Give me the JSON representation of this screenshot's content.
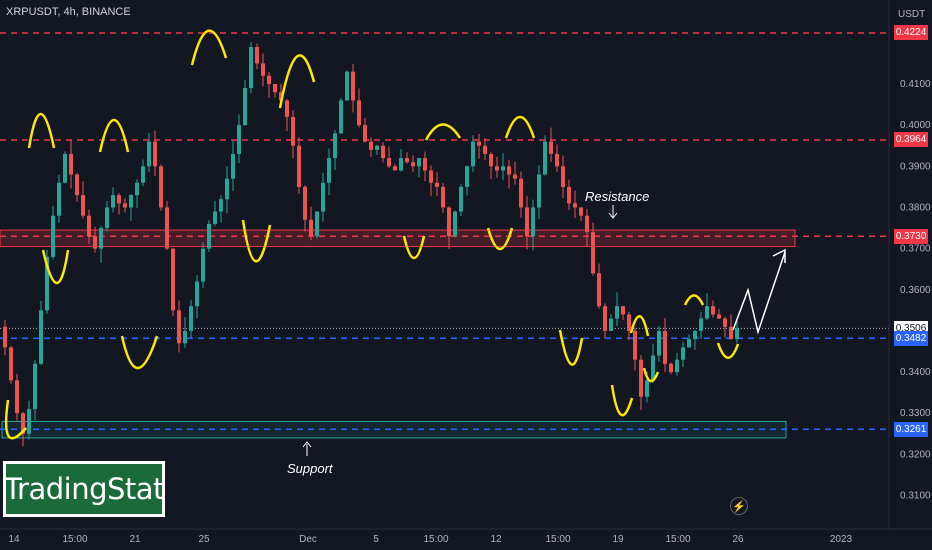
{
  "symbol_label": "XRPUSDT, 4h, BINANCE",
  "currency_label": "USDT",
  "watermark": "TradingStat",
  "annotations": {
    "resistance": "Resistance",
    "support": "Support"
  },
  "colors": {
    "background": "#131722",
    "up": "#26a69a",
    "down": "#ef5350",
    "resistance_line": "#f23645",
    "support_line": "#2962ff",
    "wave": "#ffe800",
    "projection": "#ffffff"
  },
  "chart_data": {
    "type": "candlestick",
    "title": "XRPUSDT, 4h, BINANCE",
    "y_axis": {
      "unit": "USDT",
      "ticks": [
        "0.4100",
        "0.4000",
        "0.3900",
        "0.3800",
        "0.3700",
        "0.3600",
        "0.3400",
        "0.3300",
        "0.3200",
        "0.3100"
      ],
      "range": [
        0.306,
        0.425
      ]
    },
    "x_axis": {
      "ticks": [
        "14",
        "15:00",
        "21",
        "25",
        "Dec",
        "5",
        "15:00",
        "12",
        "15:00",
        "19",
        "15:00",
        "26",
        "2023"
      ]
    },
    "price_levels": [
      {
        "value": 0.4224,
        "label": "0.4224",
        "style": "dashed",
        "color": "#f23645"
      },
      {
        "value": 0.3964,
        "label": "0.3964",
        "style": "dashed",
        "color": "#f23645"
      },
      {
        "value": 0.373,
        "label": "0.3730",
        "style": "dashed",
        "color": "#f23645"
      },
      {
        "value": 0.3506,
        "label": "0.3506",
        "style": "dotted",
        "color": "#b2b5be"
      },
      {
        "value": 0.3482,
        "label": "0.3482",
        "style": "dashed",
        "color": "#2962ff"
      },
      {
        "value": 0.3261,
        "label": "0.3261",
        "style": "dashed",
        "color": "#2962ff"
      }
    ],
    "zones": [
      {
        "name": "Resistance",
        "top": 0.3745,
        "bottom": 0.3705,
        "color": "#f23645"
      },
      {
        "name": "Support",
        "top": 0.328,
        "bottom": 0.324,
        "color": "#26a69a"
      }
    ],
    "price_path": [
      [
        0,
        0.351
      ],
      [
        1,
        0.346
      ],
      [
        2,
        0.338
      ],
      [
        3,
        0.33
      ],
      [
        4,
        0.325
      ],
      [
        5,
        0.331
      ],
      [
        6,
        0.342
      ],
      [
        7,
        0.355
      ],
      [
        8,
        0.368
      ],
      [
        9,
        0.378
      ],
      [
        10,
        0.386
      ],
      [
        11,
        0.393
      ],
      [
        12,
        0.388
      ],
      [
        13,
        0.383
      ],
      [
        14,
        0.378
      ],
      [
        15,
        0.373
      ],
      [
        16,
        0.37
      ],
      [
        17,
        0.375
      ],
      [
        18,
        0.38
      ],
      [
        19,
        0.383
      ],
      [
        20,
        0.381
      ],
      [
        21,
        0.38
      ],
      [
        22,
        0.383
      ],
      [
        23,
        0.386
      ],
      [
        24,
        0.39
      ],
      [
        25,
        0.396
      ],
      [
        26,
        0.39
      ],
      [
        27,
        0.38
      ],
      [
        28,
        0.37
      ],
      [
        29,
        0.355
      ],
      [
        30,
        0.347
      ],
      [
        31,
        0.35
      ],
      [
        32,
        0.356
      ],
      [
        33,
        0.362
      ],
      [
        34,
        0.37
      ],
      [
        35,
        0.376
      ],
      [
        36,
        0.379
      ],
      [
        37,
        0.382
      ],
      [
        38,
        0.387
      ],
      [
        39,
        0.393
      ],
      [
        40,
        0.4
      ],
      [
        41,
        0.409
      ],
      [
        42,
        0.419
      ],
      [
        43,
        0.415
      ],
      [
        44,
        0.412
      ],
      [
        45,
        0.41
      ],
      [
        46,
        0.408
      ],
      [
        47,
        0.406
      ],
      [
        48,
        0.402
      ],
      [
        49,
        0.395
      ],
      [
        50,
        0.385
      ],
      [
        51,
        0.377
      ],
      [
        52,
        0.373
      ],
      [
        53,
        0.379
      ],
      [
        54,
        0.386
      ],
      [
        55,
        0.392
      ],
      [
        56,
        0.398
      ],
      [
        57,
        0.406
      ],
      [
        58,
        0.413
      ],
      [
        59,
        0.406
      ],
      [
        60,
        0.4
      ],
      [
        61,
        0.396
      ],
      [
        62,
        0.394
      ],
      [
        63,
        0.395
      ],
      [
        64,
        0.392
      ],
      [
        65,
        0.39
      ],
      [
        66,
        0.389
      ],
      [
        67,
        0.392
      ],
      [
        68,
        0.391
      ],
      [
        69,
        0.39
      ],
      [
        70,
        0.392
      ],
      [
        71,
        0.389
      ],
      [
        72,
        0.386
      ],
      [
        73,
        0.385
      ],
      [
        74,
        0.38
      ],
      [
        75,
        0.373
      ],
      [
        76,
        0.379
      ],
      [
        77,
        0.385
      ],
      [
        78,
        0.39
      ],
      [
        79,
        0.396
      ],
      [
        80,
        0.395
      ],
      [
        81,
        0.393
      ],
      [
        82,
        0.39
      ],
      [
        83,
        0.389
      ],
      [
        84,
        0.39
      ],
      [
        85,
        0.388
      ],
      [
        86,
        0.387
      ],
      [
        87,
        0.38
      ],
      [
        88,
        0.373
      ],
      [
        89,
        0.38
      ],
      [
        90,
        0.388
      ],
      [
        91,
        0.396
      ],
      [
        92,
        0.393
      ],
      [
        93,
        0.39
      ],
      [
        94,
        0.385
      ],
      [
        95,
        0.381
      ],
      [
        96,
        0.38
      ],
      [
        97,
        0.378
      ],
      [
        98,
        0.374
      ],
      [
        99,
        0.364
      ],
      [
        100,
        0.356
      ],
      [
        101,
        0.35
      ],
      [
        102,
        0.353
      ],
      [
        103,
        0.356
      ],
      [
        104,
        0.354
      ],
      [
        105,
        0.35
      ],
      [
        106,
        0.343
      ],
      [
        107,
        0.334
      ],
      [
        108,
        0.338
      ],
      [
        109,
        0.344
      ],
      [
        110,
        0.35
      ],
      [
        111,
        0.342
      ],
      [
        112,
        0.34
      ],
      [
        113,
        0.343
      ],
      [
        114,
        0.346
      ],
      [
        115,
        0.348
      ],
      [
        116,
        0.35
      ],
      [
        117,
        0.353
      ],
      [
        118,
        0.356
      ],
      [
        119,
        0.354
      ],
      [
        120,
        0.353
      ],
      [
        121,
        0.351
      ],
      [
        122,
        0.348
      ],
      [
        123,
        0.3506
      ]
    ]
  }
}
